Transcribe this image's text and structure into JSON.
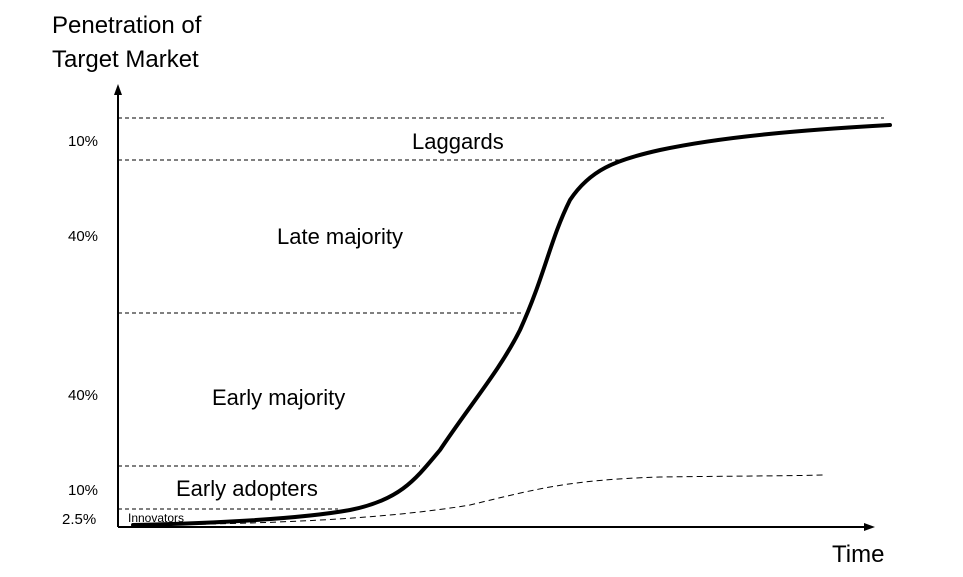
{
  "diagram": {
    "y_axis_label": [
      "Penetration of",
      "Target Market"
    ],
    "x_axis_label": "Time",
    "segments": [
      {
        "name": "Innovators",
        "share": "2.5%"
      },
      {
        "name": "Early adopters",
        "share": "10%"
      },
      {
        "name": "Early majority",
        "share": "40%"
      },
      {
        "name": "Late majority",
        "share": "40%"
      },
      {
        "name": "Laggards",
        "share": "10%"
      }
    ]
  }
}
